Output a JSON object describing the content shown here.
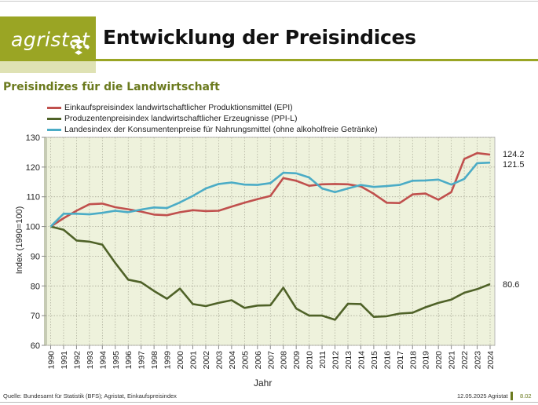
{
  "header": {
    "logo_text": "agristat",
    "title": "Entwicklung der Preisindices",
    "brand_color": "#9aa524"
  },
  "subtitle": "Preisindizes für die Landwirtschaft",
  "footer": {
    "source": "Quelle: Bundesamt für Statistik (BFS); Agristat, Einkaufspreisindex",
    "date": "12.05.2025 Agristat",
    "page": "8.02"
  },
  "chart_data": {
    "type": "line",
    "title": "Preisindizes für die Landwirtschaft",
    "xlabel": "Jahr",
    "ylabel": "Index (1990=100)",
    "ylim": [
      60,
      130
    ],
    "yticks": [
      60,
      70,
      80,
      90,
      100,
      110,
      120,
      130
    ],
    "grid": true,
    "legend_position": "top-left",
    "x": [
      "1990",
      "1991",
      "1992",
      "1993",
      "1994",
      "1995",
      "1996",
      "1997",
      "1998",
      "1999",
      "2000",
      "2001",
      "2002",
      "2003",
      "2004",
      "2005",
      "2006",
      "2007",
      "2008",
      "2009",
      "2010",
      "2011",
      "2012",
      "2013",
      "2014",
      "2015",
      "2016",
      "2017",
      "2018",
      "2019",
      "2020",
      "2021",
      "2022",
      "2023",
      "2024"
    ],
    "series": [
      {
        "name": "Einkaufspreisindex landwirtschaftlicher Produktionsmittel (EPI)",
        "color": "#c0504d",
        "values": [
          100,
          102.8,
          105.3,
          107.5,
          107.7,
          106.5,
          105.8,
          105.0,
          104.0,
          103.8,
          104.8,
          105.5,
          105.2,
          105.3,
          106.7,
          108.0,
          109.2,
          110.3,
          116.3,
          115.4,
          113.7,
          114.2,
          114.3,
          114.2,
          113.5,
          111.0,
          108.0,
          107.9,
          110.8,
          111.1,
          109.0,
          111.6,
          122.7,
          124.7,
          124.2
        ],
        "end_label": "124.2"
      },
      {
        "name": "Produzentenpreisindex landwirtschaftlicher Erzeugnisse (PPI-L)",
        "color": "#4f6228",
        "values": [
          100,
          98.9,
          95.3,
          94.9,
          93.9,
          87.7,
          82.1,
          81.2,
          78.3,
          75.7,
          79.1,
          73.9,
          73.2,
          74.3,
          75.2,
          72.6,
          73.4,
          73.5,
          79.4,
          72.4,
          70.0,
          70.0,
          68.6,
          74.0,
          73.9,
          69.6,
          69.8,
          70.7,
          71.0,
          72.8,
          74.3,
          75.4,
          77.7,
          78.9,
          80.6
        ],
        "end_label": "80.6"
      },
      {
        "name": "Landesindex der Konsumentenpreise für Nahrungsmittel (ohne alkoholfreie Getränke)",
        "color": "#4bacc6",
        "values": [
          100,
          104.3,
          104.3,
          104.1,
          104.6,
          105.3,
          104.8,
          105.7,
          106.4,
          106.2,
          108.1,
          110.3,
          112.8,
          114.3,
          114.8,
          114.1,
          114.0,
          114.6,
          118.1,
          117.9,
          116.5,
          112.8,
          111.6,
          112.8,
          114.0,
          113.3,
          113.6,
          114.0,
          115.4,
          115.5,
          115.8,
          114.1,
          116.0,
          121.3,
          121.5
        ],
        "end_label": "121.5"
      }
    ]
  }
}
